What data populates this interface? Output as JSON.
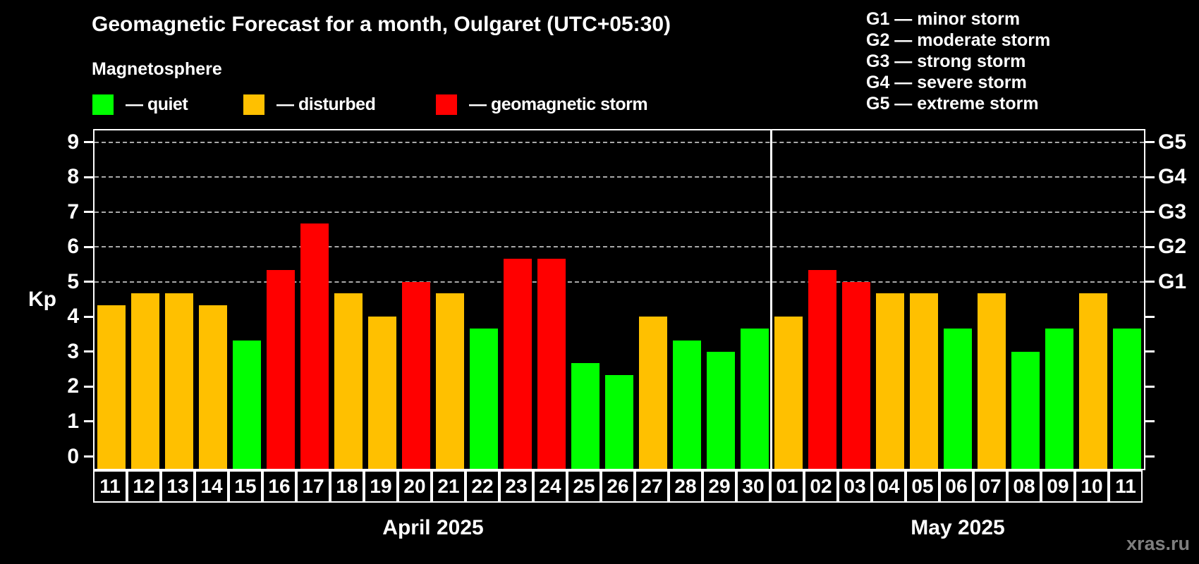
{
  "title": "Geomagnetic Forecast for a month, Oulgaret (UTC+05:30)",
  "subtitle": "Magnetosphere",
  "legend": {
    "items": [
      {
        "name": "quiet",
        "label": "— quiet",
        "color": "#00ff00"
      },
      {
        "name": "disturbed",
        "label": "— disturbed",
        "color": "#ffc000"
      },
      {
        "name": "storm",
        "label": "— geomagnetic storm",
        "color": "#ff0000"
      }
    ]
  },
  "g_legend": [
    "G1 — minor storm",
    "G2 — moderate storm",
    "G3 — strong storm",
    "G4 — severe storm",
    "G5 — extreme storm"
  ],
  "watermark": "xras.ru",
  "chart_data": {
    "type": "bar",
    "ylabel": "Kp",
    "ylim": [
      0,
      9
    ],
    "yticks": [
      0,
      1,
      2,
      3,
      4,
      5,
      6,
      7,
      8,
      9
    ],
    "gridlines_kp": [
      5,
      6,
      7,
      8,
      9
    ],
    "grid": "horizontal dashed at storm levels only",
    "legend_position": "top-left",
    "right_axis_labels": [
      {
        "text": "G1",
        "kp": 5
      },
      {
        "text": "G2",
        "kp": 6
      },
      {
        "text": "G3",
        "kp": 7
      },
      {
        "text": "G4",
        "kp": 8
      },
      {
        "text": "G5",
        "kp": 9
      }
    ],
    "level_colors": {
      "quiet": "#00ff00",
      "disturbed": "#ffc000",
      "storm": "#ff0000"
    },
    "months": [
      {
        "label": "April 2025",
        "bars": [
          {
            "date": "11",
            "kp": 4.33,
            "level": "disturbed"
          },
          {
            "date": "12",
            "kp": 4.67,
            "level": "disturbed"
          },
          {
            "date": "13",
            "kp": 4.67,
            "level": "disturbed"
          },
          {
            "date": "14",
            "kp": 4.33,
            "level": "disturbed"
          },
          {
            "date": "15",
            "kp": 3.33,
            "level": "quiet"
          },
          {
            "date": "16",
            "kp": 5.33,
            "level": "storm"
          },
          {
            "date": "17",
            "kp": 6.67,
            "level": "storm"
          },
          {
            "date": "18",
            "kp": 4.67,
            "level": "disturbed"
          },
          {
            "date": "19",
            "kp": 4.0,
            "level": "disturbed"
          },
          {
            "date": "20",
            "kp": 5.0,
            "level": "storm"
          },
          {
            "date": "21",
            "kp": 4.67,
            "level": "disturbed"
          },
          {
            "date": "22",
            "kp": 3.67,
            "level": "quiet"
          },
          {
            "date": "23",
            "kp": 5.67,
            "level": "storm"
          },
          {
            "date": "24",
            "kp": 5.67,
            "level": "storm"
          },
          {
            "date": "25",
            "kp": 2.67,
            "level": "quiet"
          },
          {
            "date": "26",
            "kp": 2.33,
            "level": "quiet"
          },
          {
            "date": "27",
            "kp": 4.0,
            "level": "disturbed"
          },
          {
            "date": "28",
            "kp": 3.33,
            "level": "quiet"
          },
          {
            "date": "29",
            "kp": 3.0,
            "level": "quiet"
          },
          {
            "date": "30",
            "kp": 3.67,
            "level": "quiet"
          }
        ]
      },
      {
        "label": "May 2025",
        "bars": [
          {
            "date": "01",
            "kp": 4.0,
            "level": "disturbed"
          },
          {
            "date": "02",
            "kp": 5.33,
            "level": "storm"
          },
          {
            "date": "03",
            "kp": 5.0,
            "level": "storm"
          },
          {
            "date": "04",
            "kp": 4.67,
            "level": "disturbed"
          },
          {
            "date": "05",
            "kp": 4.67,
            "level": "disturbed"
          },
          {
            "date": "06",
            "kp": 3.67,
            "level": "quiet"
          },
          {
            "date": "07",
            "kp": 4.67,
            "level": "disturbed"
          },
          {
            "date": "08",
            "kp": 3.0,
            "level": "quiet"
          },
          {
            "date": "09",
            "kp": 3.67,
            "level": "quiet"
          },
          {
            "date": "10",
            "kp": 4.67,
            "level": "disturbed"
          },
          {
            "date": "11",
            "kp": 3.67,
            "level": "quiet"
          }
        ]
      }
    ]
  }
}
